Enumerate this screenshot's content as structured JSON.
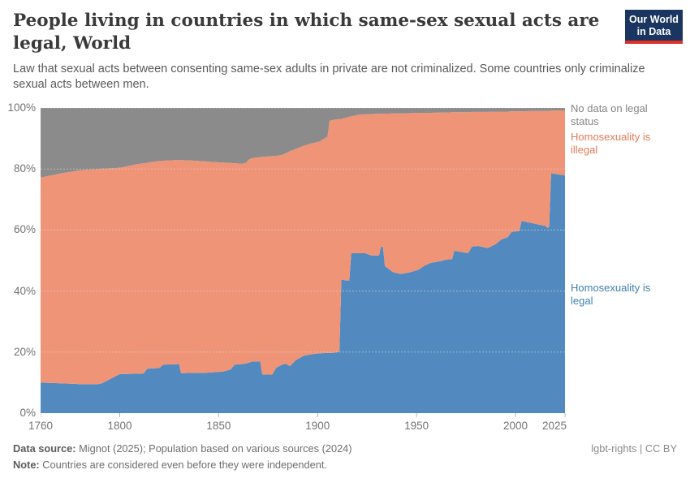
{
  "header": {
    "title": "People living in countries in which same-sex sexual acts are legal, World",
    "subtitle": "Law that sexual acts between consenting same-sex adults in private are not criminalized. Some countries only criminalize sexual acts between men.",
    "logo": {
      "line1": "Our World",
      "line2": "in Data"
    }
  },
  "chart_data": {
    "type": "area",
    "stacked": true,
    "unit": "%",
    "xlim": [
      1760,
      2025
    ],
    "ylim": [
      0,
      100
    ],
    "xticks": [
      1760,
      1800,
      1850,
      1900,
      1950,
      2000,
      2025
    ],
    "yticks": [
      0,
      20,
      40,
      60,
      80,
      100
    ],
    "ytick_suffix": "%",
    "grid": true,
    "legend_position": "right",
    "x": [
      1760,
      1770,
      1780,
      1789,
      1791,
      1800,
      1808,
      1812,
      1814,
      1815,
      1820,
      1822,
      1828,
      1830,
      1831,
      1836,
      1843,
      1845,
      1852,
      1856,
      1858,
      1862,
      1864,
      1865,
      1867,
      1871,
      1872,
      1877,
      1879,
      1882,
      1884,
      1886,
      1889,
      1893,
      1897,
      1901,
      1905,
      1906,
      1908,
      1911,
      1912,
      1916,
      1917,
      1922,
      1924,
      1927,
      1931,
      1932,
      1933,
      1934,
      1938,
      1942,
      1947,
      1951,
      1954,
      1957,
      1962,
      1965,
      1968,
      1969,
      1972,
      1976,
      1978,
      1981,
      1986,
      1990,
      1993,
      1996,
      1998,
      2002,
      2003,
      2008,
      2013,
      2015,
      2016,
      2017,
      2018,
      2021,
      2025
    ],
    "series": [
      {
        "name": "Homosexuality is legal",
        "color": "#528abf",
        "values": [
          10.0,
          9.8,
          9.5,
          9.5,
          9.8,
          12.8,
          12.9,
          13.0,
          14.6,
          14.6,
          14.8,
          15.9,
          16.0,
          16.1,
          13.1,
          13.2,
          13.2,
          13.3,
          13.6,
          14.3,
          15.9,
          16.1,
          16.3,
          16.5,
          16.9,
          17.0,
          12.7,
          12.6,
          14.8,
          15.9,
          16.2,
          15.4,
          17.4,
          18.8,
          19.3,
          19.6,
          19.7,
          19.7,
          19.8,
          20.1,
          43.7,
          43.4,
          52.5,
          52.4,
          52.4,
          51.7,
          51.6,
          54.5,
          54.6,
          48.2,
          46.2,
          45.6,
          46.2,
          47.0,
          48.3,
          49.2,
          49.8,
          50.3,
          50.5,
          53.2,
          52.9,
          52.4,
          54.6,
          54.8,
          54.1,
          55.4,
          57.0,
          57.6,
          59.4,
          59.7,
          63.0,
          62.3,
          61.6,
          61.4,
          60.8,
          60.9,
          78.6,
          78.3,
          77.9
        ]
      },
      {
        "name": "Homosexuality is illegal",
        "color": "#ef9477",
        "values": [
          67.2,
          68.7,
          70.1,
          70.5,
          70.3,
          67.6,
          68.6,
          68.9,
          67.4,
          67.6,
          67.8,
          66.8,
          66.9,
          66.8,
          69.8,
          69.6,
          69.3,
          69.1,
          68.5,
          67.7,
          66.0,
          65.6,
          65.8,
          66.5,
          66.7,
          66.9,
          71.3,
          71.6,
          69.5,
          68.7,
          69.0,
          70.4,
          69.2,
          68.8,
          69.1,
          69.4,
          70.9,
          76.1,
          76.3,
          76.3,
          52.7,
          53.7,
          44.8,
          45.5,
          45.5,
          46.3,
          46.5,
          43.6,
          43.5,
          49.9,
          52.0,
          52.6,
          52.1,
          51.4,
          50.1,
          49.2,
          48.7,
          48.2,
          48.1,
          45.4,
          45.7,
          46.2,
          44.1,
          43.9,
          44.6,
          43.4,
          41.8,
          41.2,
          39.5,
          39.2,
          35.9,
          36.7,
          37.4,
          37.6,
          38.2,
          38.2,
          20.5,
          20.9,
          21.3
        ]
      },
      {
        "name": "No data on legal status",
        "color": "#8b8b8b",
        "values": [
          22.8,
          21.5,
          20.4,
          20.0,
          19.9,
          19.6,
          18.5,
          18.1,
          18.0,
          17.8,
          17.4,
          17.3,
          17.1,
          17.1,
          17.1,
          17.2,
          17.5,
          17.6,
          17.9,
          18.0,
          18.1,
          18.3,
          17.9,
          17.0,
          16.4,
          16.1,
          16.0,
          15.8,
          15.7,
          15.4,
          14.8,
          14.2,
          13.4,
          12.4,
          11.6,
          11.0,
          9.4,
          4.2,
          3.9,
          3.6,
          3.6,
          2.9,
          2.7,
          2.1,
          2.1,
          2.0,
          1.9,
          1.9,
          1.9,
          1.9,
          1.8,
          1.8,
          1.7,
          1.6,
          1.6,
          1.6,
          1.5,
          1.5,
          1.4,
          1.4,
          1.4,
          1.4,
          1.3,
          1.3,
          1.3,
          1.2,
          1.2,
          1.2,
          1.1,
          1.1,
          1.1,
          1.0,
          1.0,
          1.0,
          1.0,
          0.9,
          0.9,
          0.8,
          0.8
        ]
      }
    ]
  },
  "footer": {
    "source_label": "Data source:",
    "source_text": " Mignot (2025); Population based on various sources (2024)",
    "note_label": "Note:",
    "note_text": " Countries are considered even before they were independent.",
    "rights": "lgbt-rights | CC BY"
  }
}
